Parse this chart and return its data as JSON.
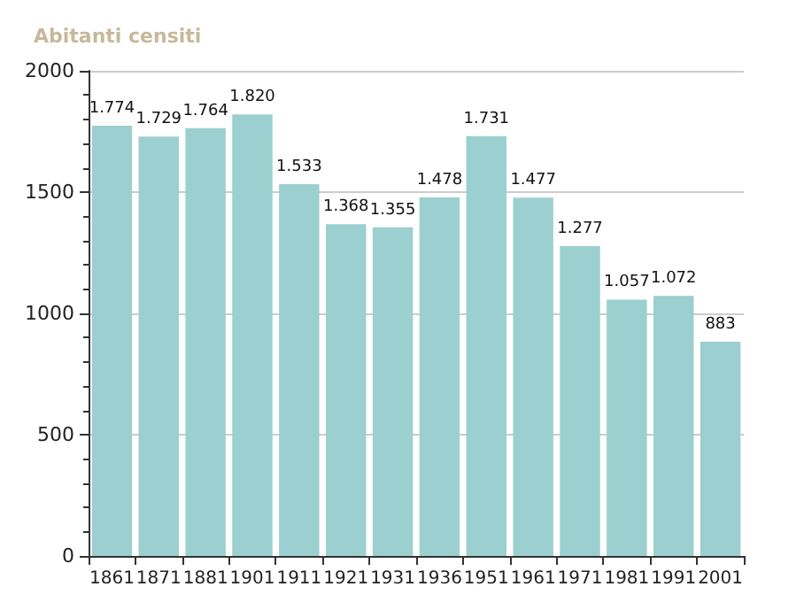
{
  "chart_data": {
    "type": "bar",
    "title": "Abitanti censiti",
    "categories": [
      "1861",
      "1871",
      "1881",
      "1901",
      "1911",
      "1921",
      "1931",
      "1936",
      "1951",
      "1961",
      "1971",
      "1981",
      "1991",
      "2001"
    ],
    "values": [
      1774,
      1729,
      1764,
      1820,
      1533,
      1368,
      1355,
      1478,
      1731,
      1477,
      1277,
      1057,
      1072,
      883
    ],
    "value_labels": [
      "1.774",
      "1.729",
      "1.764",
      "1.820",
      "1.533",
      "1.368",
      "1.355",
      "1.478",
      "1.731",
      "1.477",
      "1.277",
      "1.057",
      "1.072",
      "883"
    ],
    "color": "#9ccfcf",
    "ylim": [
      0,
      2000
    ],
    "yticks": [
      0,
      500,
      1000,
      1500,
      2000
    ],
    "grid": "y"
  }
}
